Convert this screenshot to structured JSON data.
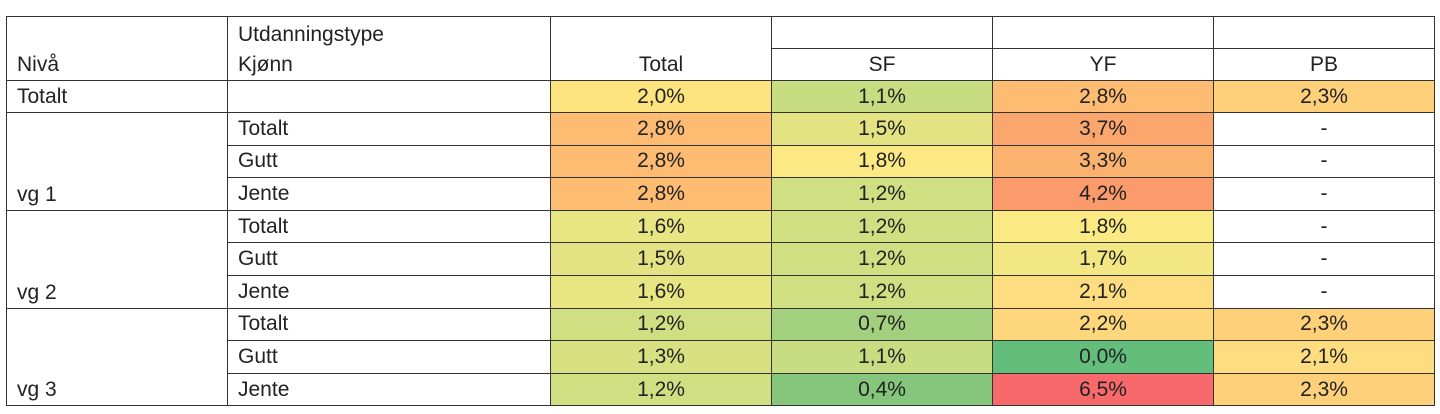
{
  "header": {
    "level_label": "Nivå",
    "type_label": "Utdanningstype",
    "gender_label": "Kjønn",
    "columns": [
      "Total",
      "SF",
      "YF",
      "PB"
    ]
  },
  "overall": {
    "level": "Totalt",
    "cells": [
      {
        "v": "2,0%",
        "c": "#fde47f"
      },
      {
        "v": "1,1%",
        "c": "#c8dc81"
      },
      {
        "v": "2,8%",
        "c": "#fdbc72"
      },
      {
        "v": "2,3%",
        "c": "#fed07a"
      }
    ]
  },
  "groups": [
    {
      "level": "vg 1",
      "rows": [
        {
          "gender": "Totalt",
          "cells": [
            {
              "v": "2,8%",
              "c": "#fdbc72"
            },
            {
              "v": "1,5%",
              "c": "#e3e383"
            },
            {
              "v": "3,7%",
              "c": "#fba66d"
            },
            {
              "v": "-",
              "c": "#ffffff"
            }
          ]
        },
        {
          "gender": "Gutt",
          "cells": [
            {
              "v": "2,8%",
              "c": "#fdbc72"
            },
            {
              "v": "1,8%",
              "c": "#fbe983"
            },
            {
              "v": "3,3%",
              "c": "#fcb26f"
            },
            {
              "v": "-",
              "c": "#ffffff"
            }
          ]
        },
        {
          "gender": "Jente",
          "cells": [
            {
              "v": "2,8%",
              "c": "#fdbc72"
            },
            {
              "v": "1,2%",
              "c": "#cfdf82"
            },
            {
              "v": "4,2%",
              "c": "#fb9a6a"
            },
            {
              "v": "-",
              "c": "#ffffff"
            }
          ]
        }
      ]
    },
    {
      "level": "vg 2",
      "rows": [
        {
          "gender": "Totalt",
          "cells": [
            {
              "v": "1,6%",
              "c": "#e8e583"
            },
            {
              "v": "1,2%",
              "c": "#cfdf82"
            },
            {
              "v": "1,8%",
              "c": "#fbe983"
            },
            {
              "v": "-",
              "c": "#ffffff"
            }
          ]
        },
        {
          "gender": "Gutt",
          "cells": [
            {
              "v": "1,5%",
              "c": "#e3e383"
            },
            {
              "v": "1,2%",
              "c": "#cfdf82"
            },
            {
              "v": "1,7%",
              "c": "#f2e783"
            },
            {
              "v": "-",
              "c": "#ffffff"
            }
          ]
        },
        {
          "gender": "Jente",
          "cells": [
            {
              "v": "1,6%",
              "c": "#e8e583"
            },
            {
              "v": "1,2%",
              "c": "#cfdf82"
            },
            {
              "v": "2,1%",
              "c": "#fedd80"
            },
            {
              "v": "-",
              "c": "#ffffff"
            }
          ]
        }
      ]
    },
    {
      "level": "vg 3",
      "rows": [
        {
          "gender": "Totalt",
          "cells": [
            {
              "v": "1,2%",
              "c": "#cfdf82"
            },
            {
              "v": "0,7%",
              "c": "#a3d07e"
            },
            {
              "v": "2,2%",
              "c": "#fed77d"
            },
            {
              "v": "2,3%",
              "c": "#fed07a"
            }
          ]
        },
        {
          "gender": "Gutt",
          "cells": [
            {
              "v": "1,3%",
              "c": "#d8e182"
            },
            {
              "v": "1,1%",
              "c": "#c8dc81"
            },
            {
              "v": "0,0%",
              "c": "#63be7b"
            },
            {
              "v": "2,1%",
              "c": "#fedd80"
            }
          ]
        },
        {
          "gender": "Jente",
          "cells": [
            {
              "v": "1,2%",
              "c": "#cfdf82"
            },
            {
              "v": "0,4%",
              "c": "#85c67c"
            },
            {
              "v": "6,5%",
              "c": "#f8696b"
            },
            {
              "v": "2,3%",
              "c": "#fed07a"
            }
          ]
        }
      ]
    }
  ]
}
